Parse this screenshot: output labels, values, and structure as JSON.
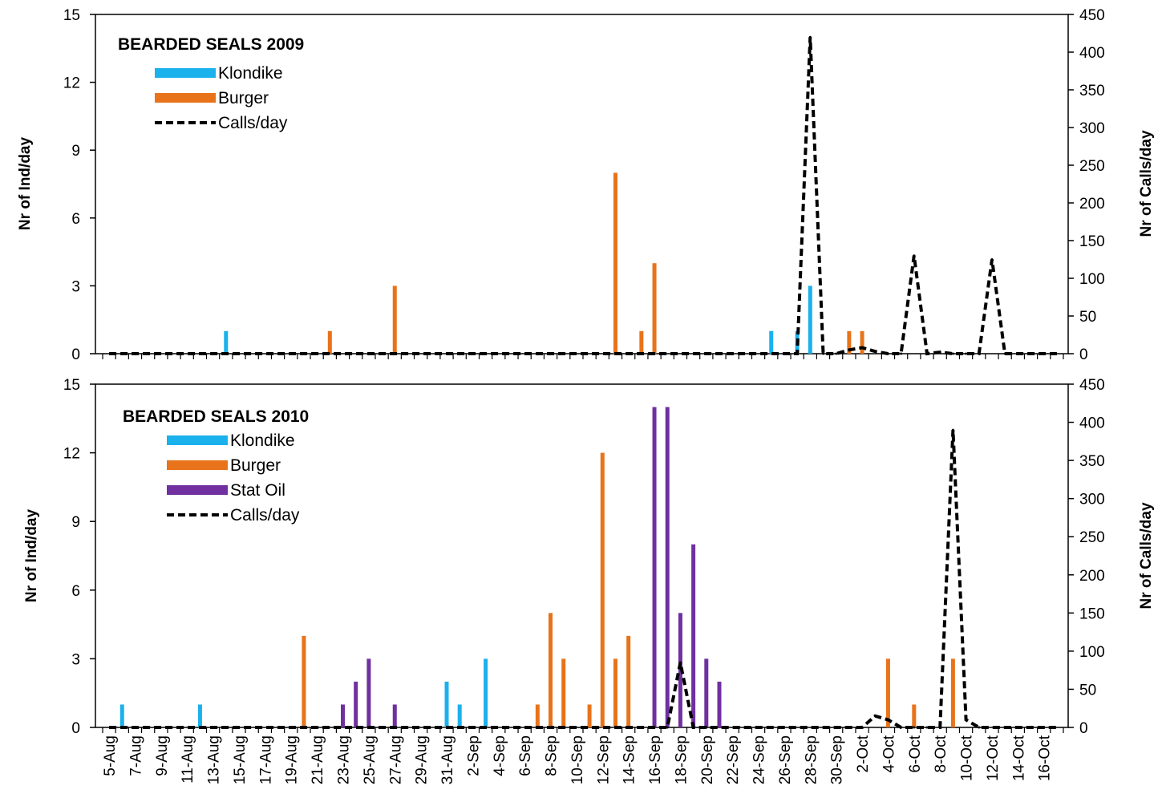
{
  "chart_data": [
    {
      "type": "bar",
      "title": "BEARDED SEALS 2009",
      "ylabel": "Nr of Ind/day",
      "y2label": "Nr of Calls/day",
      "ylim": [
        0,
        15
      ],
      "y2lim": [
        0,
        450
      ],
      "yticks": [
        "0",
        "3",
        "6",
        "9",
        "12",
        "15"
      ],
      "y2ticks": [
        "0",
        "50",
        "100",
        "150",
        "200",
        "250",
        "300",
        "350",
        "400",
        "450"
      ],
      "legend": [
        {
          "name": "Klondike",
          "kind": "bar",
          "color": "#1AB1EC"
        },
        {
          "name": "Burger",
          "kind": "bar",
          "color": "#E8731A"
        },
        {
          "name": "Calls/day",
          "kind": "line",
          "color": "#000000"
        }
      ],
      "bars": [
        {
          "series": "Klondike",
          "date": "14-Aug",
          "value": 1
        },
        {
          "series": "Burger",
          "date": "22-Aug",
          "value": 1
        },
        {
          "series": "Burger",
          "date": "27-Aug",
          "value": 3
        },
        {
          "series": "Burger",
          "date": "13-Sep",
          "value": 8
        },
        {
          "series": "Burger",
          "date": "15-Sep",
          "value": 1
        },
        {
          "series": "Burger",
          "date": "16-Sep",
          "value": 4
        },
        {
          "series": "Klondike",
          "date": "25-Sep",
          "value": 1
        },
        {
          "series": "Klondike",
          "date": "27-Sep",
          "value": 1
        },
        {
          "series": "Klondike",
          "date": "28-Sep",
          "value": 3
        },
        {
          "series": "Burger",
          "date": "1-Oct",
          "value": 1
        },
        {
          "series": "Burger",
          "date": "2-Oct",
          "value": 1
        }
      ],
      "calls": [
        {
          "date": "27-Sep",
          "value": 0
        },
        {
          "date": "28-Sep",
          "value": 420
        },
        {
          "date": "29-Sep",
          "value": 0
        },
        {
          "date": "30-Sep",
          "value": 0
        },
        {
          "date": "1-Oct",
          "value": 5
        },
        {
          "date": "2-Oct",
          "value": 8
        },
        {
          "date": "3-Oct",
          "value": 3
        },
        {
          "date": "4-Oct",
          "value": 0
        },
        {
          "date": "5-Oct",
          "value": 0
        },
        {
          "date": "6-Oct",
          "value": 130
        },
        {
          "date": "7-Oct",
          "value": 0
        },
        {
          "date": "8-Oct",
          "value": 2
        },
        {
          "date": "9-Oct",
          "value": 0
        },
        {
          "date": "10-Oct",
          "value": 0
        },
        {
          "date": "11-Oct",
          "value": 0
        },
        {
          "date": "12-Oct",
          "value": 125
        },
        {
          "date": "13-Oct",
          "value": 0
        }
      ]
    },
    {
      "type": "bar",
      "title": "BEARDED SEALS 2010",
      "ylabel": "Nr of Ind/day",
      "y2label": "Nr of Calls/day",
      "ylim": [
        0,
        15
      ],
      "y2lim": [
        0,
        450
      ],
      "yticks": [
        "0",
        "3",
        "6",
        "9",
        "12",
        "15"
      ],
      "y2ticks": [
        "0",
        "50",
        "100",
        "150",
        "200",
        "250",
        "300",
        "350",
        "400",
        "450"
      ],
      "legend": [
        {
          "name": "Klondike",
          "kind": "bar",
          "color": "#1AB1EC"
        },
        {
          "name": "Burger",
          "kind": "bar",
          "color": "#E8731A"
        },
        {
          "name": "Stat Oil",
          "kind": "bar",
          "color": "#7030A0"
        },
        {
          "name": "Calls/day",
          "kind": "line",
          "color": "#000000"
        }
      ],
      "bars": [
        {
          "series": "Klondike",
          "date": "6-Aug",
          "value": 1
        },
        {
          "series": "Klondike",
          "date": "12-Aug",
          "value": 1
        },
        {
          "series": "Burger",
          "date": "20-Aug",
          "value": 4
        },
        {
          "series": "Stat Oil",
          "date": "23-Aug",
          "value": 1
        },
        {
          "series": "Stat Oil",
          "date": "24-Aug",
          "value": 2
        },
        {
          "series": "Stat Oil",
          "date": "25-Aug",
          "value": 3
        },
        {
          "series": "Stat Oil",
          "date": "27-Aug",
          "value": 1
        },
        {
          "series": "Klondike",
          "date": "31-Aug",
          "value": 2
        },
        {
          "series": "Klondike",
          "date": "1-Sep",
          "value": 1
        },
        {
          "series": "Klondike",
          "date": "3-Sep",
          "value": 3
        },
        {
          "series": "Burger",
          "date": "7-Sep",
          "value": 1
        },
        {
          "series": "Burger",
          "date": "8-Sep",
          "value": 5
        },
        {
          "series": "Burger",
          "date": "9-Sep",
          "value": 3
        },
        {
          "series": "Burger",
          "date": "11-Sep",
          "value": 1
        },
        {
          "series": "Burger",
          "date": "12-Sep",
          "value": 12
        },
        {
          "series": "Burger",
          "date": "13-Sep",
          "value": 3
        },
        {
          "series": "Burger",
          "date": "14-Sep",
          "value": 4
        },
        {
          "series": "Stat Oil",
          "date": "16-Sep",
          "value": 14
        },
        {
          "series": "Stat Oil",
          "date": "17-Sep",
          "value": 14
        },
        {
          "series": "Stat Oil",
          "date": "18-Sep",
          "value": 5
        },
        {
          "series": "Stat Oil",
          "date": "19-Sep",
          "value": 8
        },
        {
          "series": "Stat Oil",
          "date": "20-Sep",
          "value": 3
        },
        {
          "series": "Stat Oil",
          "date": "21-Sep",
          "value": 2
        },
        {
          "series": "Burger",
          "date": "4-Oct",
          "value": 3
        },
        {
          "series": "Burger",
          "date": "6-Oct",
          "value": 1
        },
        {
          "series": "Burger",
          "date": "9-Oct",
          "value": 3
        }
      ],
      "calls": [
        {
          "date": "17-Sep",
          "value": 0
        },
        {
          "date": "18-Sep",
          "value": 85
        },
        {
          "date": "19-Sep",
          "value": 0
        },
        {
          "date": "20-Sep",
          "value": 0
        },
        {
          "date": "2-Oct",
          "value": 0
        },
        {
          "date": "3-Oct",
          "value": 15
        },
        {
          "date": "4-Oct",
          "value": 10
        },
        {
          "date": "5-Oct",
          "value": 0
        },
        {
          "date": "6-Oct",
          "value": 0
        },
        {
          "date": "7-Oct",
          "value": 0
        },
        {
          "date": "8-Oct",
          "value": 0
        },
        {
          "date": "9-Oct",
          "value": 390
        },
        {
          "date": "10-Oct",
          "value": 10
        },
        {
          "date": "11-Oct",
          "value": 0
        }
      ]
    }
  ],
  "x_tick_labels": [
    "5-Aug",
    "7-Aug",
    "9-Aug",
    "11-Aug",
    "13-Aug",
    "15-Aug",
    "17-Aug",
    "19-Aug",
    "21-Aug",
    "23-Aug",
    "25-Aug",
    "27-Aug",
    "29-Aug",
    "31-Aug",
    "2-Sep",
    "4-Sep",
    "6-Sep",
    "8-Sep",
    "10-Sep",
    "12-Sep",
    "14-Sep",
    "16-Sep",
    "18-Sep",
    "20-Sep",
    "22-Sep",
    "24-Sep",
    "26-Sep",
    "28-Sep",
    "30-Sep",
    "2-Oct",
    "4-Oct",
    "6-Oct",
    "8-Oct",
    "10-Oct",
    "12-Oct",
    "14-Oct",
    "16-Oct"
  ],
  "x_range": [
    "5-Aug",
    "17-Oct"
  ]
}
